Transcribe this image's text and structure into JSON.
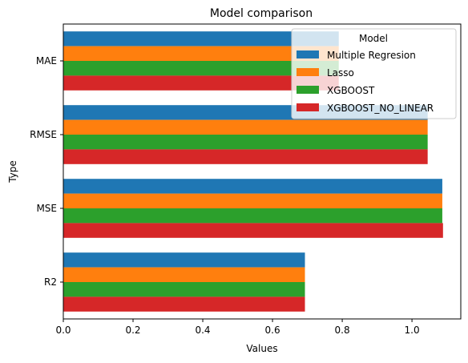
{
  "chart_data": {
    "type": "bar",
    "orientation": "horizontal",
    "title": "Model comparison",
    "xlabel": "Values",
    "ylabel": "Type",
    "categories": [
      "MAE",
      "RMSE",
      "MSE",
      "R2"
    ],
    "series": [
      {
        "name": "Multiple Regresion",
        "color": "#1f77b4",
        "values": [
          0.79,
          1.045,
          1.087,
          0.693
        ]
      },
      {
        "name": "Lasso",
        "color": "#ff7f0e",
        "values": [
          0.79,
          1.045,
          1.087,
          0.693
        ]
      },
      {
        "name": "XGBOOST",
        "color": "#2ca02c",
        "values": [
          0.79,
          1.045,
          1.087,
          0.693
        ]
      },
      {
        "name": "XGBOOST_NO_LINEAR",
        "color": "#d62728",
        "values": [
          0.79,
          1.045,
          1.089,
          0.693
        ]
      }
    ],
    "xlim": [
      0,
      1.14
    ],
    "xticks": [
      "0.0",
      "0.2",
      "0.4",
      "0.6",
      "0.8",
      "1.0"
    ],
    "legend": {
      "title": "Model",
      "placement": "top-right"
    },
    "grid": false
  }
}
